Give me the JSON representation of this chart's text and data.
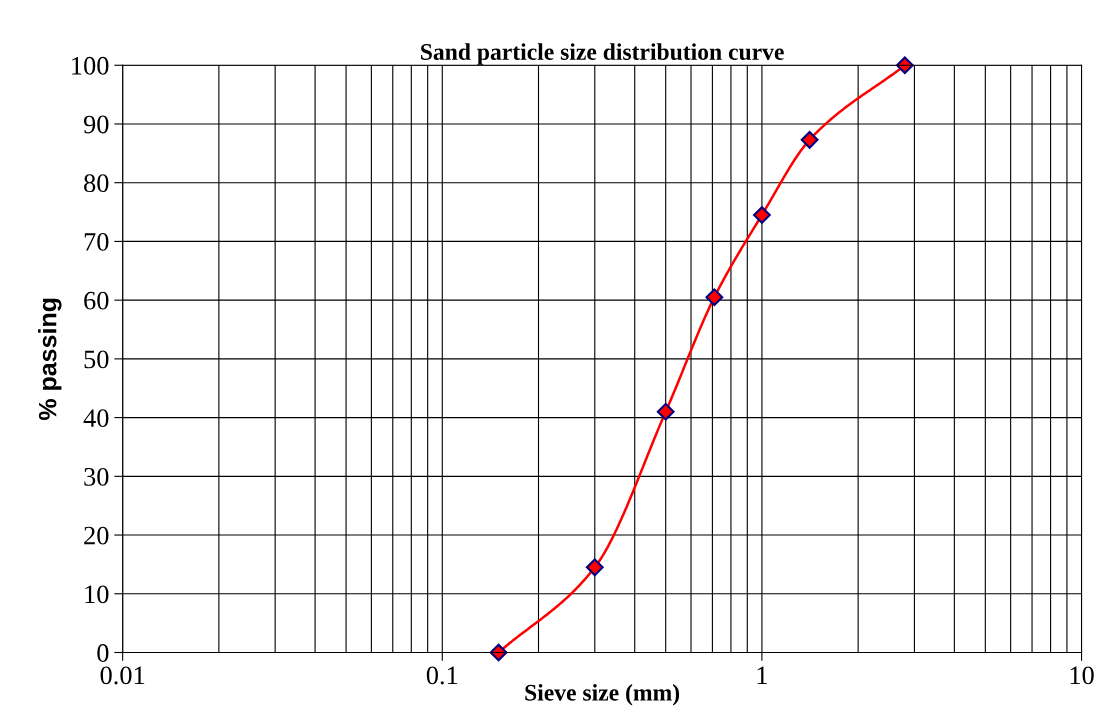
{
  "chart_data": {
    "type": "line",
    "title": "Sand particle size distribution curve",
    "xlabel": "Sieve size (mm)",
    "ylabel": "% passing",
    "log": "x",
    "grid": true,
    "marker": "diamond",
    "line_style": "solid",
    "xlim": [
      0.01,
      10
    ],
    "xticks": [
      0.01,
      0.1,
      1,
      10
    ],
    "ylim": [
      0,
      100
    ],
    "yticks": [
      0,
      10,
      20,
      30,
      40,
      50,
      60,
      70,
      80,
      90,
      100
    ],
    "x": [
      0.15,
      0.3,
      0.5,
      0.71,
      1,
      1.41,
      2.8
    ],
    "series": [
      {
        "color": "#ff0000",
        "values": [
          0,
          14.5,
          41,
          60.5,
          74.5,
          87.3,
          100
        ]
      }
    ]
  }
}
